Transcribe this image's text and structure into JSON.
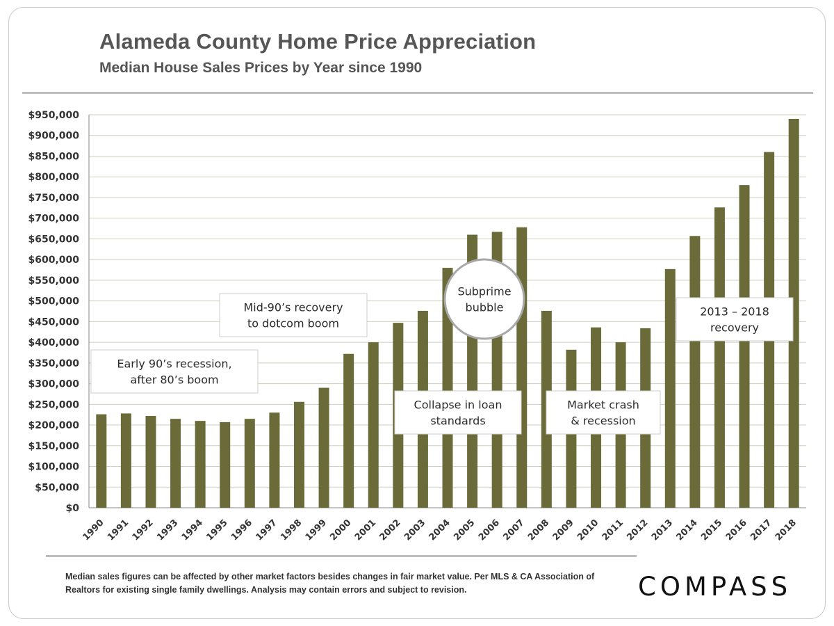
{
  "title": "Alameda County Home Price Appreciation",
  "subtitle": "Median House Sales Prices by Year since 1990",
  "footnote": "Median sales figures can be affected by other market factors besides changes in fair market value. Per MLS & CA Association of Realtors for existing single family dwellings. Analysis may contain errors and subject to revision.",
  "logo": "COMPASS",
  "colors": {
    "bar": "#6b6b3a",
    "grid": "#cfcfbf",
    "axis": "#888888",
    "text": "#555555"
  },
  "chart_data": {
    "type": "bar",
    "title": "Alameda County Home Price Appreciation",
    "subtitle": "Median House Sales Prices by Year since 1990",
    "xlabel": "",
    "ylabel": "",
    "ylim": [
      0,
      950000
    ],
    "ytick_step": 50000,
    "ytick_labels": [
      "$0",
      "$50,000",
      "$100,000",
      "$150,000",
      "$200,000",
      "$250,000",
      "$300,000",
      "$350,000",
      "$400,000",
      "$450,000",
      "$500,000",
      "$550,000",
      "$600,000",
      "$650,000",
      "$700,000",
      "$750,000",
      "$800,000",
      "$850,000",
      "$900,000",
      "$950,000"
    ],
    "grid": true,
    "legend": "none",
    "categories": [
      "1990",
      "1991",
      "1992",
      "1993",
      "1994",
      "1995",
      "1996",
      "1997",
      "1998",
      "1999",
      "2000",
      "2001",
      "2002",
      "2003",
      "2004",
      "2005",
      "2006",
      "2007",
      "2008",
      "2009",
      "2010",
      "2011",
      "2012",
      "2013",
      "2014",
      "2015",
      "2016",
      "2017",
      "2018"
    ],
    "values": [
      226000,
      228000,
      222000,
      215000,
      210000,
      207000,
      215000,
      230000,
      256000,
      290000,
      372000,
      400000,
      447000,
      476000,
      580000,
      660000,
      667000,
      678000,
      476000,
      382000,
      436000,
      400000,
      434000,
      577000,
      657000,
      726000,
      780000,
      860000,
      940000
    ],
    "annotations": [
      {
        "lines": [
          "Early 90’s recession,",
          "after 80’s boom"
        ],
        "shape": "box"
      },
      {
        "lines": [
          "Mid-90’s recovery",
          "to dotcom boom"
        ],
        "shape": "box"
      },
      {
        "lines": [
          "Collapse in loan",
          "standards"
        ],
        "shape": "box"
      },
      {
        "lines": [
          "Subprime",
          "bubble"
        ],
        "shape": "circle"
      },
      {
        "lines": [
          "Market crash",
          "& recession"
        ],
        "shape": "box"
      },
      {
        "lines": [
          "2013 – 2018",
          "recovery"
        ],
        "shape": "box"
      }
    ]
  }
}
